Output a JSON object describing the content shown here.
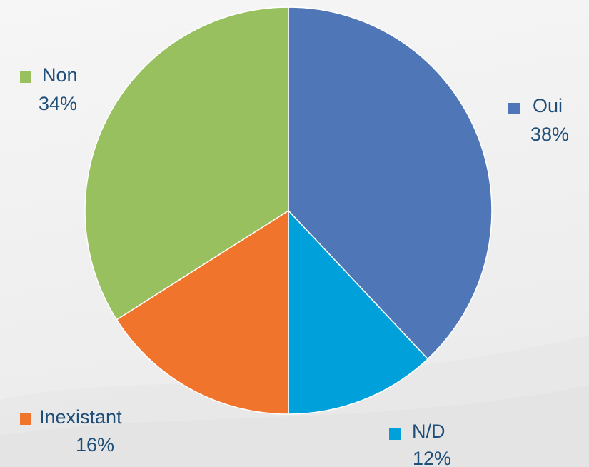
{
  "chart_data": {
    "type": "pie",
    "title": "",
    "categories": [
      "Oui",
      "N/D",
      "Inexistant",
      "Non"
    ],
    "values": [
      38,
      12,
      16,
      34
    ],
    "value_labels": [
      "38%",
      "12%",
      "16%",
      "34%"
    ],
    "colors": [
      "#4f77b8",
      "#00a1da",
      "#f0742c",
      "#98c05f"
    ],
    "start_angle_deg": 0,
    "direction": "clockwise",
    "legend": "data labels with colored markers"
  },
  "theme": {
    "label_color": "#1f4e79",
    "slice_border": "#ffffff"
  }
}
